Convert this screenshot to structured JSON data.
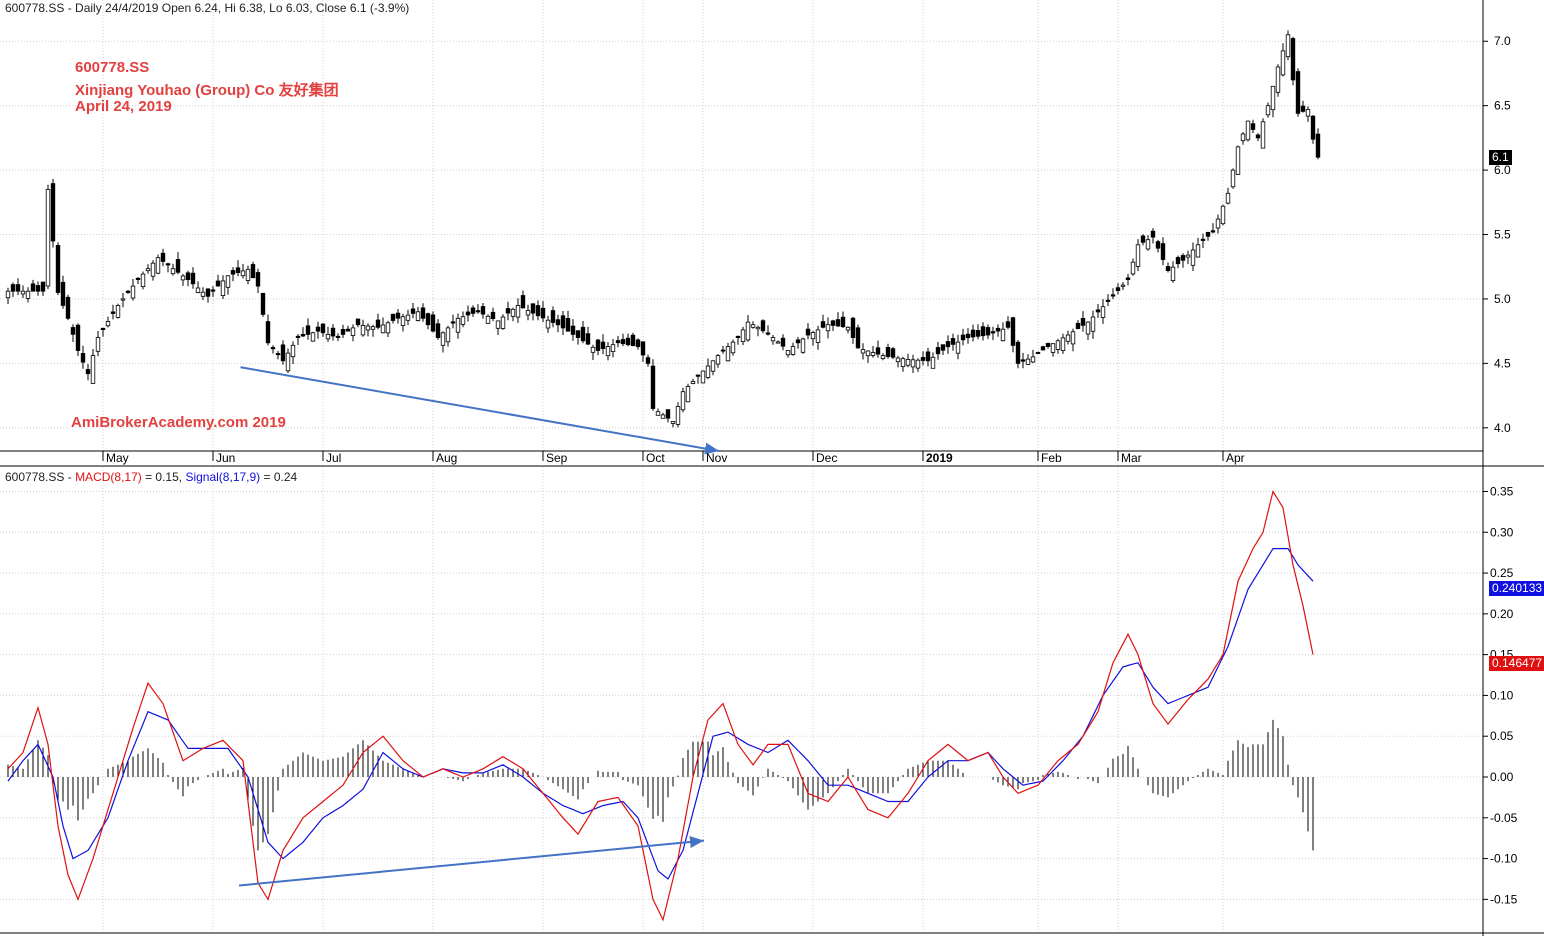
{
  "header": {
    "price_symbol": "600778.SS",
    "price_info": " - Daily 24/4/2019 Open 6.24, Hi 6.38, Lo 6.03, Close 6.1 (-3.9%)",
    "macd_symbol": "600778.SS",
    "macd_sep": " - ",
    "macd_label": "MACD(8,17)",
    "macd_value": " = 0.15, ",
    "signal_label": "Signal(8,17,9)",
    "signal_value": " = 0.24"
  },
  "annotations": {
    "line1": "600778.SS",
    "line2": "Xinjiang Youhao (Group) Co 友好集团",
    "line3": "April 24, 2019",
    "watermark": "AmiBrokerAcademy.com  2019"
  },
  "tags": {
    "close": "6.1",
    "signal_last": "0.240133",
    "macd_last": "0.146477"
  },
  "colors": {
    "macd": "#e01010",
    "signal": "#1010e0",
    "trendline": "#4472c4",
    "annotation": "#e34040"
  },
  "chart_data": [
    {
      "type": "candlestick",
      "title": "600778.SS - Daily",
      "x_months": [
        {
          "label": "May",
          "day": 19
        },
        {
          "label": "Jun",
          "day": 41
        },
        {
          "label": "Jul",
          "day": 63
        },
        {
          "label": "Aug",
          "day": 85
        },
        {
          "label": "Sep",
          "day": 107
        },
        {
          "label": "Oct",
          "day": 127
        },
        {
          "label": "Nov",
          "day": 139
        },
        {
          "label": "Dec",
          "day": 161
        },
        {
          "label": "2019",
          "day": 183
        },
        {
          "label": "Feb",
          "day": 206
        },
        {
          "label": "Mar",
          "day": 222
        },
        {
          "label": "Apr",
          "day": 243
        }
      ],
      "y_ticks": [
        4.0,
        4.5,
        5.0,
        5.5,
        6.0,
        6.5,
        7.0
      ],
      "ylim": [
        3.82,
        7.32
      ],
      "last_close": 6.1,
      "close_key": [
        [
          0,
          5.06
        ],
        [
          7,
          5.06
        ],
        [
          8,
          5.85
        ],
        [
          10,
          5.05
        ],
        [
          12,
          4.85
        ],
        [
          14,
          4.6
        ],
        [
          16,
          4.42
        ],
        [
          18,
          4.7
        ],
        [
          22,
          4.95
        ],
        [
          26,
          5.15
        ],
        [
          30,
          5.32
        ],
        [
          36,
          5.15
        ],
        [
          40,
          5.02
        ],
        [
          44,
          5.18
        ],
        [
          48,
          5.23
        ],
        [
          50,
          5.1
        ],
        [
          52,
          4.66
        ],
        [
          55,
          4.52
        ],
        [
          58,
          4.7
        ],
        [
          62,
          4.75
        ],
        [
          66,
          4.7
        ],
        [
          70,
          4.8
        ],
        [
          74,
          4.78
        ],
        [
          78,
          4.85
        ],
        [
          82,
          4.9
        ],
        [
          86,
          4.7
        ],
        [
          90,
          4.85
        ],
        [
          94,
          4.9
        ],
        [
          98,
          4.83
        ],
        [
          102,
          4.95
        ],
        [
          106,
          4.87
        ],
        [
          110,
          4.8
        ],
        [
          114,
          4.7
        ],
        [
          118,
          4.6
        ],
        [
          122,
          4.66
        ],
        [
          126,
          4.63
        ],
        [
          128,
          4.5
        ],
        [
          129,
          4.15
        ],
        [
          131,
          4.1
        ],
        [
          133,
          4.05
        ],
        [
          135,
          4.28
        ],
        [
          138,
          4.4
        ],
        [
          142,
          4.56
        ],
        [
          146,
          4.7
        ],
        [
          148,
          4.82
        ],
        [
          150,
          4.78
        ],
        [
          153,
          4.7
        ],
        [
          156,
          4.6
        ],
        [
          160,
          4.72
        ],
        [
          164,
          4.8
        ],
        [
          168,
          4.78
        ],
        [
          170,
          4.62
        ],
        [
          175,
          4.56
        ],
        [
          180,
          4.53
        ],
        [
          184,
          4.52
        ],
        [
          188,
          4.63
        ],
        [
          192,
          4.7
        ],
        [
          196,
          4.72
        ],
        [
          200,
          4.78
        ],
        [
          202,
          4.5
        ],
        [
          205,
          4.55
        ],
        [
          208,
          4.63
        ],
        [
          212,
          4.72
        ],
        [
          216,
          4.82
        ],
        [
          220,
          4.98
        ],
        [
          224,
          5.15
        ],
        [
          226,
          5.42
        ],
        [
          229,
          5.48
        ],
        [
          232,
          5.22
        ],
        [
          235,
          5.3
        ],
        [
          238,
          5.42
        ],
        [
          241,
          5.52
        ],
        [
          244,
          5.82
        ],
        [
          246,
          6.18
        ],
        [
          248,
          6.38
        ],
        [
          250,
          6.25
        ],
        [
          252,
          6.5
        ],
        [
          254,
          6.8
        ],
        [
          256,
          7.05
        ],
        [
          257,
          6.7
        ],
        [
          258,
          6.44
        ],
        [
          260,
          6.47
        ],
        [
          261,
          6.24
        ],
        [
          262,
          6.1
        ]
      ]
    },
    {
      "type": "line+bar",
      "title": "MACD(8,17), Signal(8,17,9)",
      "y_ticks": [
        -0.15,
        -0.1,
        -0.05,
        0.0,
        0.05,
        0.1,
        0.15,
        0.2,
        0.25,
        0.3,
        0.35
      ],
      "ylim": [
        -0.19,
        0.38
      ],
      "series": [
        {
          "name": "MACD(8,17)",
          "last": 0.15,
          "key": [
            [
              0,
              0.01
            ],
            [
              3,
              0.03
            ],
            [
              6,
              0.085
            ],
            [
              8,
              0.04
            ],
            [
              10,
              -0.06
            ],
            [
              12,
              -0.12
            ],
            [
              14,
              -0.15
            ],
            [
              17,
              -0.1
            ],
            [
              21,
              -0.02
            ],
            [
              25,
              0.06
            ],
            [
              28,
              0.115
            ],
            [
              31,
              0.09
            ],
            [
              35,
              0.02
            ],
            [
              39,
              0.035
            ],
            [
              43,
              0.045
            ],
            [
              47,
              0.02
            ],
            [
              50,
              -0.13
            ],
            [
              52,
              -0.15
            ],
            [
              55,
              -0.09
            ],
            [
              59,
              -0.05
            ],
            [
              63,
              -0.03
            ],
            [
              67,
              -0.01
            ],
            [
              71,
              0.03
            ],
            [
              75,
              0.05
            ],
            [
              79,
              0.02
            ],
            [
              83,
              0.0
            ],
            [
              87,
              0.01
            ],
            [
              91,
              0.0
            ],
            [
              95,
              0.01
            ],
            [
              99,
              0.025
            ],
            [
              103,
              0.01
            ],
            [
              107,
              -0.02
            ],
            [
              111,
              -0.05
            ],
            [
              114,
              -0.07
            ],
            [
              118,
              -0.03
            ],
            [
              122,
              -0.025
            ],
            [
              126,
              -0.06
            ],
            [
              129,
              -0.15
            ],
            [
              131,
              -0.175
            ],
            [
              134,
              -0.1
            ],
            [
              137,
              0.0
            ],
            [
              140,
              0.07
            ],
            [
              143,
              0.09
            ],
            [
              146,
              0.04
            ],
            [
              149,
              0.015
            ],
            [
              152,
              0.04
            ],
            [
              156,
              0.04
            ],
            [
              160,
              -0.02
            ],
            [
              164,
              -0.03
            ],
            [
              168,
              0.0
            ],
            [
              172,
              -0.04
            ],
            [
              176,
              -0.05
            ],
            [
              180,
              -0.02
            ],
            [
              184,
              0.02
            ],
            [
              188,
              0.04
            ],
            [
              192,
              0.02
            ],
            [
              196,
              0.03
            ],
            [
              199,
              0.0
            ],
            [
              202,
              -0.02
            ],
            [
              206,
              -0.01
            ],
            [
              210,
              0.02
            ],
            [
              214,
              0.04
            ],
            [
              218,
              0.08
            ],
            [
              221,
              0.14
            ],
            [
              224,
              0.175
            ],
            [
              226,
              0.15
            ],
            [
              229,
              0.09
            ],
            [
              232,
              0.065
            ],
            [
              236,
              0.095
            ],
            [
              240,
              0.12
            ],
            [
              243,
              0.15
            ],
            [
              246,
              0.24
            ],
            [
              249,
              0.28
            ],
            [
              251,
              0.3
            ],
            [
              253,
              0.35
            ],
            [
              255,
              0.33
            ],
            [
              257,
              0.26
            ],
            [
              259,
              0.21
            ],
            [
              260,
              0.18
            ],
            [
              261,
              0.15
            ]
          ]
        },
        {
          "name": "Signal(8,17,9)",
          "last": 0.24,
          "key": [
            [
              0,
              -0.005
            ],
            [
              3,
              0.02
            ],
            [
              6,
              0.04
            ],
            [
              9,
              0.0
            ],
            [
              11,
              -0.06
            ],
            [
              13,
              -0.1
            ],
            [
              16,
              -0.09
            ],
            [
              20,
              -0.05
            ],
            [
              24,
              0.02
            ],
            [
              28,
              0.08
            ],
            [
              32,
              0.07
            ],
            [
              36,
              0.035
            ],
            [
              40,
              0.035
            ],
            [
              44,
              0.035
            ],
            [
              48,
              0.0
            ],
            [
              52,
              -0.08
            ],
            [
              55,
              -0.1
            ],
            [
              59,
              -0.08
            ],
            [
              63,
              -0.05
            ],
            [
              67,
              -0.035
            ],
            [
              71,
              -0.015
            ],
            [
              75,
              0.03
            ],
            [
              79,
              0.01
            ],
            [
              83,
              0.0
            ],
            [
              87,
              0.01
            ],
            [
              91,
              0.005
            ],
            [
              95,
              0.005
            ],
            [
              99,
              0.015
            ],
            [
              103,
              0.0
            ],
            [
              107,
              -0.02
            ],
            [
              111,
              -0.035
            ],
            [
              115,
              -0.045
            ],
            [
              119,
              -0.035
            ],
            [
              123,
              -0.03
            ],
            [
              126,
              -0.05
            ],
            [
              130,
              -0.115
            ],
            [
              132,
              -0.125
            ],
            [
              135,
              -0.09
            ],
            [
              138,
              -0.02
            ],
            [
              141,
              0.05
            ],
            [
              144,
              0.055
            ],
            [
              148,
              0.04
            ],
            [
              152,
              0.03
            ],
            [
              156,
              0.045
            ],
            [
              160,
              0.02
            ],
            [
              164,
              -0.01
            ],
            [
              168,
              -0.01
            ],
            [
              172,
              -0.02
            ],
            [
              176,
              -0.03
            ],
            [
              180,
              -0.03
            ],
            [
              184,
              0.0
            ],
            [
              188,
              0.02
            ],
            [
              192,
              0.02
            ],
            [
              196,
              0.03
            ],
            [
              199,
              0.01
            ],
            [
              203,
              -0.01
            ],
            [
              207,
              -0.005
            ],
            [
              211,
              0.02
            ],
            [
              215,
              0.05
            ],
            [
              219,
              0.1
            ],
            [
              223,
              0.135
            ],
            [
              226,
              0.14
            ],
            [
              229,
              0.11
            ],
            [
              232,
              0.09
            ],
            [
              236,
              0.1
            ],
            [
              240,
              0.11
            ],
            [
              244,
              0.16
            ],
            [
              248,
              0.23
            ],
            [
              251,
              0.26
            ],
            [
              253,
              0.28
            ],
            [
              256,
              0.28
            ],
            [
              258,
              0.26
            ],
            [
              261,
              0.24
            ]
          ]
        }
      ]
    }
  ]
}
